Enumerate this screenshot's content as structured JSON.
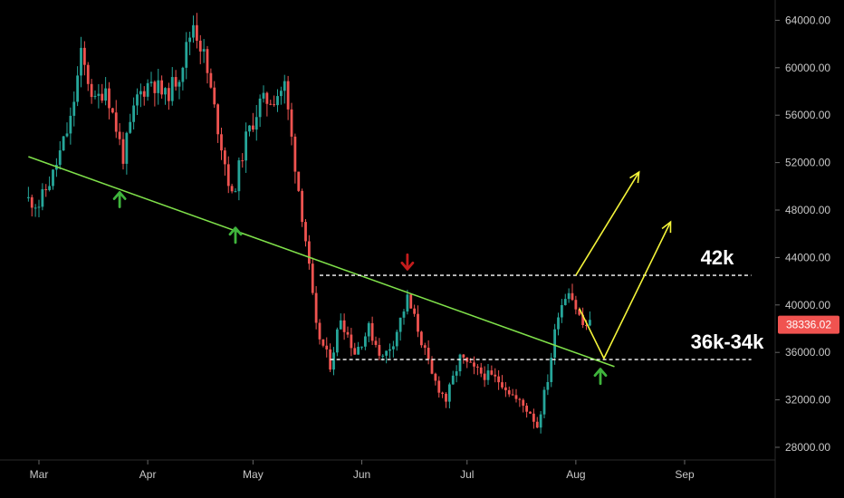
{
  "chart_data": {
    "type": "candlestick",
    "title": "",
    "xlabel": "",
    "ylabel": "",
    "y_ticks": [
      "28000.00",
      "32000.00",
      "36000.00",
      "40000.00",
      "44000.00",
      "48000.00",
      "52000.00",
      "56000.00",
      "60000.00",
      "64000.00"
    ],
    "x_ticks": [
      "Mar",
      "Apr",
      "May",
      "Jun",
      "Jul",
      "Aug",
      "Sep"
    ],
    "ylim": [
      26500,
      66500
    ],
    "grid": false,
    "last_price": {
      "value": 38336.02,
      "label": "38336.02",
      "color": "#f05350"
    },
    "colors": {
      "up": "#26a69a",
      "down": "#ef5350",
      "trendline": "#7fe04a",
      "projection": "#f4f43a",
      "arrow_up": "#3fb43c",
      "arrow_down": "#c41c1c",
      "level_line": "#ffffff"
    },
    "series": [
      {
        "name": "",
        "points": [
          {
            "x": "Feb 25",
            "y": 49000
          },
          {
            "x": "Mar 01",
            "y": 48500
          },
          {
            "x": "Mar 05",
            "y": 51000
          },
          {
            "x": "Mar 10",
            "y": 55500
          },
          {
            "x": "Mar 13",
            "y": 61000
          },
          {
            "x": "Mar 17",
            "y": 57000
          },
          {
            "x": "Mar 20",
            "y": 58500
          },
          {
            "x": "Mar 25",
            "y": 52500
          },
          {
            "x": "Mar 29",
            "y": 57500
          },
          {
            "x": "Apr 02",
            "y": 59000
          },
          {
            "x": "Apr 06",
            "y": 57500
          },
          {
            "x": "Apr 10",
            "y": 59500
          },
          {
            "x": "Apr 14",
            "y": 63800
          },
          {
            "x": "Apr 17",
            "y": 61000
          },
          {
            "x": "Apr 22",
            "y": 53500
          },
          {
            "x": "Apr 25",
            "y": 49000
          },
          {
            "x": "Apr 29",
            "y": 54000
          },
          {
            "x": "May 03",
            "y": 57000
          },
          {
            "x": "May 07",
            "y": 57500
          },
          {
            "x": "May 10",
            "y": 58500
          },
          {
            "x": "May 12",
            "y": 54000
          },
          {
            "x": "May 16",
            "y": 45500
          },
          {
            "x": "May 19",
            "y": 38000
          },
          {
            "x": "May 23",
            "y": 35000
          },
          {
            "x": "May 26",
            "y": 39000
          },
          {
            "x": "May 30",
            "y": 36000
          },
          {
            "x": "Jun 03",
            "y": 38000
          },
          {
            "x": "Jun 07",
            "y": 35500
          },
          {
            "x": "Jun 10",
            "y": 37000
          },
          {
            "x": "Jun 14",
            "y": 40500
          },
          {
            "x": "Jun 17",
            "y": 38000
          },
          {
            "x": "Jun 21",
            "y": 34000
          },
          {
            "x": "Jun 25",
            "y": 32000
          },
          {
            "x": "Jun 29",
            "y": 35500
          },
          {
            "x": "Jul 03",
            "y": 34500
          },
          {
            "x": "Jul 07",
            "y": 34000
          },
          {
            "x": "Jul 11",
            "y": 33500
          },
          {
            "x": "Jul 15",
            "y": 32000
          },
          {
            "x": "Jul 19",
            "y": 31000
          },
          {
            "x": "Jul 21",
            "y": 29800
          },
          {
            "x": "Jul 24",
            "y": 33800
          },
          {
            "x": "Jul 27",
            "y": 39500
          },
          {
            "x": "Jul 30",
            "y": 41500
          },
          {
            "x": "Aug 01",
            "y": 39800
          },
          {
            "x": "Aug 03",
            "y": 38300
          },
          {
            "x": "Aug 05",
            "y": 38336
          }
        ]
      }
    ],
    "annotations": {
      "trendline": {
        "from": {
          "x": "Feb 26",
          "y": 52500
        },
        "to": {
          "x": "Aug 12",
          "y": 34800
        }
      },
      "levels": [
        {
          "label": "42k",
          "value": 42500,
          "from_x": "May 20",
          "to_x": "Sep 20"
        },
        {
          "label": "36k-34k",
          "value": 35400,
          "from_x": "May 23",
          "to_x": "Sep 20"
        }
      ],
      "projection_paths": [
        [
          {
            "x": "Aug 02",
            "y": 39700
          },
          {
            "x": "Aug 09",
            "y": 35500
          },
          {
            "x": "Aug 28",
            "y": 47000
          }
        ],
        [
          {
            "x": "Aug 01",
            "y": 42500
          },
          {
            "x": "Aug 19",
            "y": 51200
          }
        ]
      ],
      "arrows": [
        {
          "direction": "up",
          "x": "Mar 24",
          "y": 48800
        },
        {
          "direction": "up",
          "x": "Apr 26",
          "y": 45800
        },
        {
          "direction": "down",
          "x": "Jun 14",
          "y": 43700
        },
        {
          "direction": "up",
          "x": "Aug 08",
          "y": 33900
        }
      ]
    }
  }
}
